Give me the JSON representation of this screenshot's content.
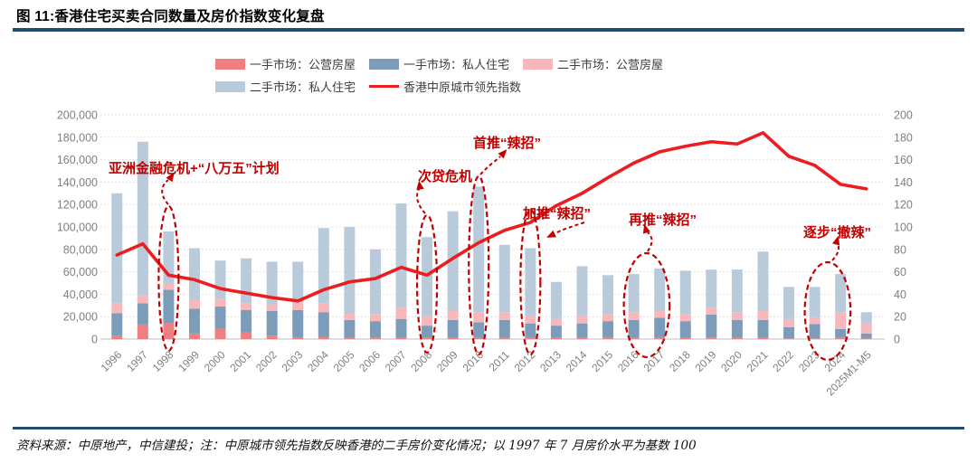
{
  "figure": {
    "title": "图 11:香港住宅买卖合同数量及房价指数变化复盘",
    "source_note": "资料来源：中原地产，中信建投；注：中原城市领先指数反映香港的二手房价变化情况；以 1997 年 7 月房价水平为基数 100"
  },
  "legend": {
    "items": [
      {
        "label": "一手市场：公营房屋",
        "color": "#ef7f81",
        "type": "box"
      },
      {
        "label": "一手市场：私人住宅",
        "color": "#7d9cb9",
        "type": "box"
      },
      {
        "label": "二手市场：公营房屋",
        "color": "#f7b7bb",
        "type": "box"
      },
      {
        "label": "二手市场：私人住宅",
        "color": "#b9cbdb",
        "type": "box"
      },
      {
        "label": "香港中原城市领先指数",
        "color": "#ec1c1f",
        "type": "line"
      }
    ]
  },
  "chart_data": {
    "type": "bar",
    "subtype": "stacked-bars-with-line-dual-axis",
    "title": "香港住宅买卖合同数量及房价指数变化复盘",
    "categories": [
      "1996",
      "1997",
      "1998",
      "1999",
      "2000",
      "2001",
      "2002",
      "2003",
      "2004",
      "2005",
      "2006",
      "2007",
      "2008",
      "2009",
      "2010",
      "2011",
      "2012",
      "2013",
      "2014",
      "2015",
      "2016",
      "2017",
      "2018",
      "2019",
      "2020",
      "2021",
      "2022",
      "2023",
      "2024",
      "2025M1-M5"
    ],
    "series": [
      {
        "name": "一手市场：公营房屋",
        "type": "bar",
        "axis": "left",
        "color": "#ef7f81",
        "values": [
          3000,
          13000,
          14000,
          5000,
          9000,
          6000,
          3000,
          1000,
          2000,
          1000,
          1000,
          1000,
          1000,
          1000,
          1000,
          1000,
          1000,
          1000,
          1000,
          1000,
          1000,
          1000,
          1000,
          1500,
          1000,
          1000,
          500,
          500,
          1000,
          500
        ]
      },
      {
        "name": "一手市场：私人住宅",
        "type": "bar",
        "axis": "left",
        "color": "#7d9cb9",
        "values": [
          20000,
          19000,
          30000,
          22000,
          20000,
          20000,
          22000,
          25000,
          22000,
          16000,
          15000,
          17000,
          11000,
          16000,
          14000,
          16000,
          13000,
          11000,
          13000,
          15000,
          16000,
          18000,
          15000,
          20500,
          16000,
          16000,
          10000,
          13000,
          8000,
          4500
        ]
      },
      {
        "name": "二手市场：公营房屋",
        "type": "bar",
        "axis": "left",
        "color": "#f7b7bb",
        "values": [
          9000,
          7000,
          6000,
          8000,
          7000,
          6000,
          6000,
          7000,
          8000,
          6000,
          6000,
          10000,
          8000,
          8000,
          9000,
          7000,
          7000,
          6000,
          7000,
          6000,
          7000,
          6000,
          6000,
          6000,
          7000,
          8000,
          7000,
          6000,
          15000,
          9000
        ]
      },
      {
        "name": "二手市场：私人住宅",
        "type": "bar",
        "axis": "left",
        "color": "#b9cbdb",
        "values": [
          98000,
          137000,
          46000,
          46000,
          34000,
          40000,
          38000,
          36000,
          67000,
          77000,
          58000,
          93000,
          71000,
          89000,
          112000,
          60000,
          60000,
          33000,
          44000,
          35000,
          34000,
          38000,
          39000,
          34000,
          38000,
          53000,
          29000,
          27000,
          34000,
          10000
        ]
      },
      {
        "name": "香港中原城市领先指数",
        "type": "line",
        "axis": "right",
        "color": "#ec1c1f",
        "values": [
          75,
          85,
          57,
          53,
          45,
          41,
          37,
          34,
          44,
          51,
          54,
          64,
          57,
          72,
          86,
          97,
          104,
          119,
          130,
          144,
          157,
          167,
          172,
          176,
          174,
          184,
          163,
          155,
          138,
          134
        ]
      }
    ],
    "left_axis": {
      "min": 0,
      "max": 200000,
      "step": 20000,
      "tick_labels": [
        "0",
        "20,000",
        "40,000",
        "60,000",
        "80,000",
        "100,000",
        "120,000",
        "140,000",
        "160,000",
        "180,000",
        "200,000"
      ]
    },
    "right_axis": {
      "min": 0,
      "max": 200,
      "step": 20,
      "tick_labels": [
        "0",
        "20",
        "40",
        "60",
        "80",
        "100",
        "120",
        "140",
        "160",
        "180",
        "200"
      ]
    },
    "grid": "dotted horizontal gridlines",
    "legend_position": "top-center",
    "annotations": [
      {
        "text": "亚洲金融危机+“八万五”计划",
        "target_year": "1998"
      },
      {
        "text": "次贷危机",
        "target_year": "2008"
      },
      {
        "text": "首推“辣招”",
        "target_year": "2010"
      },
      {
        "text": "加推“辣招”",
        "target_year": "2012"
      },
      {
        "text": "再推“辣招”",
        "target_years": "2016-2017"
      },
      {
        "text": "逐步“撤辣”",
        "target_years": "2023-2024"
      }
    ],
    "highlight_ellipses": [
      {
        "years": [
          "1998"
        ]
      },
      {
        "years": [
          "2008"
        ]
      },
      {
        "years": [
          "2010"
        ]
      },
      {
        "years": [
          "2012"
        ]
      },
      {
        "years": [
          "2016",
          "2017"
        ]
      },
      {
        "years": [
          "2023",
          "2024"
        ]
      }
    ],
    "annotation_color": "#c00000"
  }
}
